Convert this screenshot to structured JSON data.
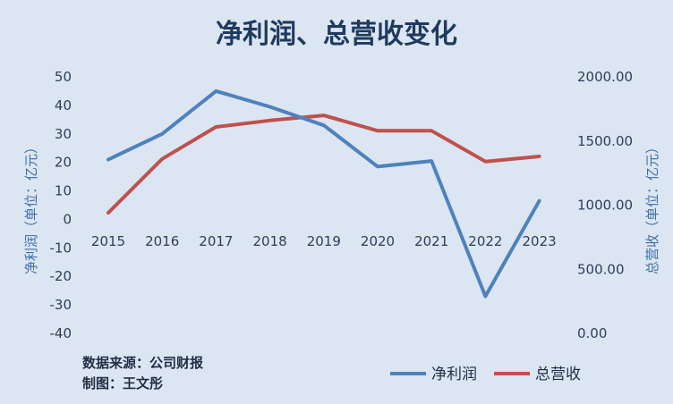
{
  "chart_data": {
    "type": "line",
    "title": "净利润、总营收变化",
    "categories": [
      "2015",
      "2016",
      "2017",
      "2018",
      "2019",
      "2020",
      "2021",
      "2022",
      "2023"
    ],
    "y_left": {
      "label": "净利润（单位：亿元）",
      "ylim": [
        -40,
        50
      ],
      "ticks": [
        "50",
        "40",
        "30",
        "20",
        "10",
        "0",
        "-10",
        "-20",
        "-30",
        "-40"
      ]
    },
    "y_right": {
      "label": "总营收（单位：亿元）",
      "ylim": [
        0,
        2000
      ],
      "ticks": [
        "2000.00",
        "1500.00",
        "1000.00",
        "500.00",
        "0.00"
      ]
    },
    "series": [
      {
        "name": "净利润",
        "axis": "left",
        "color": "#4f81bd",
        "values": [
          21,
          30,
          45,
          39.5,
          33,
          18.5,
          20.5,
          -27,
          6.5
        ]
      },
      {
        "name": "总营收",
        "axis": "right",
        "color": "#c0504d",
        "values": [
          940,
          1360,
          1610,
          1660,
          1700,
          1580,
          1580,
          1340,
          1380
        ]
      }
    ],
    "grid": false,
    "legend": "bottom-right"
  },
  "notes": {
    "source": "数据来源：公司财报",
    "author": "制图：王文彤"
  }
}
